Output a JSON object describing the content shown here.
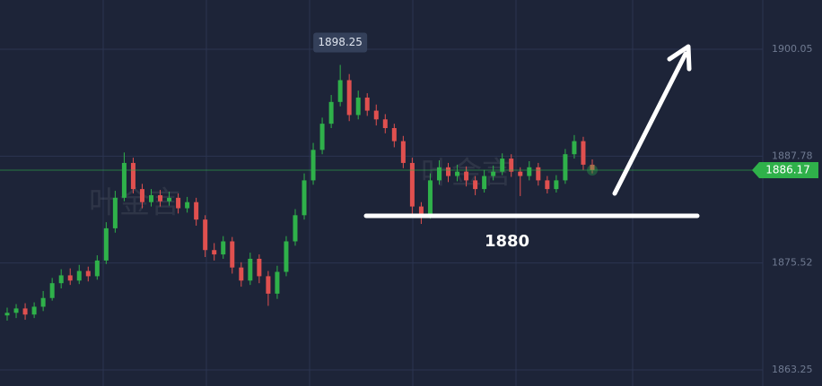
{
  "chart_data": {
    "type": "candlestick",
    "ohlc": [
      [
        1869.5,
        1870.4,
        1868.9,
        1869.8
      ],
      [
        1869.8,
        1870.8,
        1869.2,
        1870.3
      ],
      [
        1870.3,
        1870.9,
        1869.0,
        1869.6
      ],
      [
        1869.6,
        1871.0,
        1869.2,
        1870.5
      ],
      [
        1870.5,
        1872.3,
        1870.0,
        1871.5
      ],
      [
        1871.5,
        1873.8,
        1871.2,
        1873.2
      ],
      [
        1873.2,
        1874.8,
        1872.6,
        1874.1
      ],
      [
        1874.1,
        1874.9,
        1873.0,
        1873.5
      ],
      [
        1873.5,
        1875.3,
        1873.1,
        1874.6
      ],
      [
        1874.6,
        1875.1,
        1873.4,
        1874.0
      ],
      [
        1874.0,
        1876.4,
        1873.6,
        1875.8
      ],
      [
        1875.8,
        1880.2,
        1875.4,
        1879.5
      ],
      [
        1879.5,
        1883.8,
        1879.0,
        1883.0
      ],
      [
        1883.0,
        1888.2,
        1882.6,
        1887.0
      ],
      [
        1887.0,
        1887.6,
        1883.5,
        1884.0
      ],
      [
        1884.0,
        1884.6,
        1881.8,
        1882.5
      ],
      [
        1882.5,
        1884.0,
        1882.0,
        1883.3
      ],
      [
        1883.3,
        1883.9,
        1882.0,
        1882.6
      ],
      [
        1882.6,
        1883.7,
        1882.1,
        1883.0
      ],
      [
        1883.0,
        1883.5,
        1881.2,
        1881.8
      ],
      [
        1881.8,
        1883.1,
        1881.3,
        1882.5
      ],
      [
        1882.5,
        1883.0,
        1879.8,
        1880.5
      ],
      [
        1880.5,
        1881.0,
        1876.2,
        1877.0
      ],
      [
        1877.0,
        1877.8,
        1875.8,
        1876.5
      ],
      [
        1876.5,
        1878.6,
        1876.0,
        1878.0
      ],
      [
        1878.0,
        1878.5,
        1874.3,
        1875.0
      ],
      [
        1875.0,
        1875.6,
        1872.8,
        1873.5
      ],
      [
        1873.5,
        1876.7,
        1873.0,
        1876.0
      ],
      [
        1876.0,
        1876.5,
        1873.2,
        1874.0
      ],
      [
        1874.0,
        1874.6,
        1870.6,
        1872.0
      ],
      [
        1872.0,
        1875.2,
        1871.4,
        1874.5
      ],
      [
        1874.5,
        1878.6,
        1874.0,
        1878.0
      ],
      [
        1878.0,
        1881.7,
        1877.5,
        1881.0
      ],
      [
        1881.0,
        1885.8,
        1880.5,
        1885.0
      ],
      [
        1885.0,
        1889.3,
        1884.5,
        1888.5
      ],
      [
        1888.5,
        1892.2,
        1888.0,
        1891.5
      ],
      [
        1891.5,
        1894.8,
        1891.0,
        1894.0
      ],
      [
        1894.0,
        1898.25,
        1893.5,
        1896.5
      ],
      [
        1896.5,
        1897.2,
        1891.8,
        1892.5
      ],
      [
        1892.5,
        1895.3,
        1892.0,
        1894.5
      ],
      [
        1894.5,
        1895.0,
        1892.4,
        1893.0
      ],
      [
        1893.0,
        1893.7,
        1891.3,
        1892.0
      ],
      [
        1892.0,
        1892.6,
        1890.4,
        1891.0
      ],
      [
        1891.0,
        1891.5,
        1888.8,
        1889.5
      ],
      [
        1889.5,
        1890.1,
        1886.4,
        1887.0
      ],
      [
        1887.0,
        1887.6,
        1880.9,
        1882.0
      ],
      [
        1882.0,
        1882.5,
        1880.0,
        1881.0
      ],
      [
        1881.0,
        1885.8,
        1880.6,
        1885.0
      ],
      [
        1885.0,
        1887.3,
        1884.5,
        1886.5
      ],
      [
        1886.5,
        1887.0,
        1884.8,
        1885.5
      ],
      [
        1885.5,
        1886.8,
        1884.9,
        1886.0
      ],
      [
        1886.0,
        1886.6,
        1884.3,
        1885.0
      ],
      [
        1885.0,
        1885.5,
        1883.3,
        1884.0
      ],
      [
        1884.0,
        1886.2,
        1883.6,
        1885.5
      ],
      [
        1885.5,
        1886.7,
        1885.0,
        1886.0
      ],
      [
        1886.0,
        1888.1,
        1885.6,
        1887.5
      ],
      [
        1887.5,
        1888.0,
        1885.4,
        1886.0
      ],
      [
        1886.0,
        1886.5,
        1883.2,
        1885.5
      ],
      [
        1885.5,
        1887.2,
        1885.0,
        1886.5
      ],
      [
        1886.5,
        1887.0,
        1884.4,
        1885.0
      ],
      [
        1885.0,
        1885.5,
        1883.5,
        1884.0
      ],
      [
        1884.0,
        1885.6,
        1883.6,
        1885.0
      ],
      [
        1885.0,
        1888.6,
        1884.6,
        1888.0
      ],
      [
        1888.0,
        1890.2,
        1887.5,
        1889.5
      ],
      [
        1889.5,
        1890.0,
        1886.2,
        1886.8
      ],
      [
        1886.8,
        1887.4,
        1885.8,
        1886.17
      ]
    ],
    "up_color": "#2fb14a",
    "down_color": "#e0504f",
    "ylim": [
      1861.4,
      1905.7
    ],
    "yticks": [
      1900.05,
      1887.78,
      1875.52,
      1863.25
    ],
    "grid": true,
    "annotation": "1880",
    "watermark": "叶金言"
  }
}
